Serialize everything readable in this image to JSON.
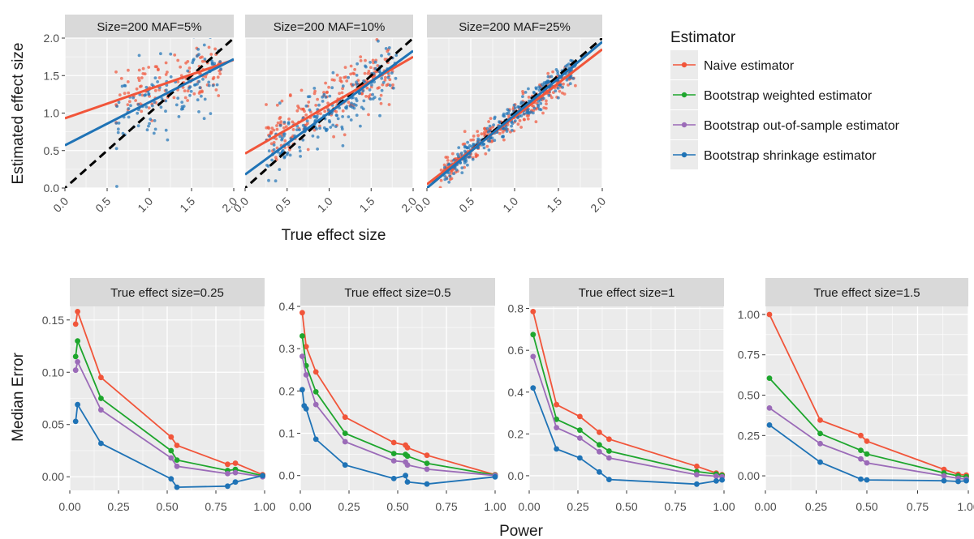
{
  "colors": {
    "naive": "#F1553A",
    "weighted": "#1EA62D",
    "oos": "#9B6BB8",
    "shrinkage": "#1F73B6",
    "panel_bg": "#EBEBEB",
    "strip_bg": "#D9D9D9",
    "grid": "#FFFFFF",
    "identity_line": "#000000"
  },
  "legend": {
    "title": "Estimator",
    "position": "right",
    "entries": [
      {
        "key": "naive",
        "label": "Naive estimator"
      },
      {
        "key": "weighted",
        "label": "Bootstrap weighted estimator"
      },
      {
        "key": "oos",
        "label": "Bootstrap out-of-sample estimator"
      },
      {
        "key": "shrinkage",
        "label": "Bootstrap shrinkage estimator"
      }
    ]
  },
  "chart_data": [
    {
      "type": "scatter",
      "xlabel": "True effect size",
      "ylabel": "Estimated effect size",
      "xlim": [
        0,
        2
      ],
      "ylim": [
        0,
        2
      ],
      "xticks": [
        "0.0",
        "0.5",
        "1.0",
        "1.5",
        "2.0"
      ],
      "yticks": [
        "0.0",
        "0.5",
        "1.0",
        "1.5",
        "2.0"
      ],
      "grid": true,
      "reference_line": {
        "slope": 1,
        "intercept": 0,
        "style": "dashed"
      },
      "facets": [
        {
          "title": "Size=200 MAF=5%",
          "fit_lines": [
            {
              "series": "naive",
              "x": [
                0,
                2
              ],
              "y": [
                0.93,
                1.71
              ]
            },
            {
              "series": "shrinkage",
              "x": [
                0,
                2
              ],
              "y": [
                0.57,
                1.72
              ]
            }
          ],
          "point_clouds": [
            {
              "series": "naive",
              "n": 120,
              "x_range": [
                0.6,
                1.85
              ],
              "intercept": 0.93,
              "slope": 0.39,
              "sd": 0.18
            },
            {
              "series": "shrinkage",
              "n": 120,
              "x_range": [
                0.6,
                1.85
              ],
              "intercept": 0.57,
              "slope": 0.58,
              "sd": 0.26
            }
          ]
        },
        {
          "title": "Size=200 MAF=10%",
          "fit_lines": [
            {
              "series": "naive",
              "x": [
                0,
                2
              ],
              "y": [
                0.46,
                1.75
              ]
            },
            {
              "series": "shrinkage",
              "x": [
                0,
                2
              ],
              "y": [
                0.18,
                1.83
              ]
            }
          ],
          "point_clouds": [
            {
              "series": "naive",
              "n": 200,
              "x_range": [
                0.25,
                1.8
              ],
              "intercept": 0.46,
              "slope": 0.65,
              "sd": 0.18
            },
            {
              "series": "shrinkage",
              "n": 200,
              "x_range": [
                0.25,
                1.8
              ],
              "intercept": 0.18,
              "slope": 0.82,
              "sd": 0.2
            }
          ]
        },
        {
          "title": "Size=200 MAF=25%",
          "fit_lines": [
            {
              "series": "naive",
              "x": [
                0,
                2
              ],
              "y": [
                0.05,
                1.85
              ]
            },
            {
              "series": "shrinkage",
              "x": [
                0,
                2
              ],
              "y": [
                0.0,
                1.95
              ]
            }
          ],
          "point_clouds": [
            {
              "series": "naive",
              "n": 260,
              "x_range": [
                0.15,
                1.7
              ],
              "intercept": 0.05,
              "slope": 0.9,
              "sd": 0.1
            },
            {
              "series": "shrinkage",
              "n": 260,
              "x_range": [
                0.2,
                1.7
              ],
              "intercept": 0.0,
              "slope": 0.96,
              "sd": 0.09
            }
          ]
        }
      ]
    },
    {
      "type": "line",
      "xlabel": "Power",
      "ylabel": "Median Error",
      "xlim": [
        0,
        1
      ],
      "xticks": [
        "0.00",
        "0.25",
        "0.50",
        "0.75",
        "1.00"
      ],
      "grid": true,
      "facets": [
        {
          "title": "True effect size=0.25",
          "ylim": [
            -0.013,
            0.163
          ],
          "yticks": [
            0.0,
            0.05,
            0.1,
            0.15
          ],
          "ytick_labels": [
            "0.00",
            "0.05",
            "0.10",
            "0.15"
          ],
          "series": [
            {
              "name": "naive",
              "x": [
                0.03,
                0.04,
                0.16,
                0.52,
                0.55,
                0.81,
                0.85,
                0.99
              ],
              "y": [
                0.146,
                0.158,
                0.095,
                0.038,
                0.03,
                0.012,
                0.013,
                0.002
              ]
            },
            {
              "name": "weighted",
              "x": [
                0.03,
                0.04,
                0.16,
                0.52,
                0.55,
                0.81,
                0.85,
                0.99
              ],
              "y": [
                0.115,
                0.13,
                0.075,
                0.025,
                0.016,
                0.006,
                0.007,
                0.001
              ]
            },
            {
              "name": "oos",
              "x": [
                0.03,
                0.04,
                0.16,
                0.52,
                0.55,
                0.81,
                0.85,
                0.99
              ],
              "y": [
                0.102,
                0.11,
                0.064,
                0.018,
                0.01,
                0.003,
                0.004,
                0.0
              ]
            },
            {
              "name": "shrinkage",
              "x": [
                0.03,
                0.04,
                0.16,
                0.52,
                0.55,
                0.81,
                0.85,
                0.99
              ],
              "y": [
                0.053,
                0.069,
                0.032,
                -0.002,
                -0.01,
                -0.009,
                -0.005,
                0.001
              ]
            }
          ]
        },
        {
          "title": "True effect size=0.5",
          "ylim": [
            -0.035,
            0.4
          ],
          "yticks": [
            0.0,
            0.1,
            0.2,
            0.3,
            0.4
          ],
          "ytick_labels": [
            "0.0",
            "0.1",
            "0.2",
            "0.3",
            "0.4"
          ],
          "series": [
            {
              "name": "naive",
              "x": [
                0.01,
                0.03,
                0.08,
                0.23,
                0.48,
                0.54,
                0.55,
                0.65,
                1.0
              ],
              "y": [
                0.385,
                0.305,
                0.245,
                0.138,
                0.078,
                0.072,
                0.066,
                0.048,
                0.002
              ]
            },
            {
              "name": "weighted",
              "x": [
                0.01,
                0.03,
                0.08,
                0.23,
                0.48,
                0.54,
                0.55,
                0.65,
                1.0
              ],
              "y": [
                0.33,
                0.26,
                0.198,
                0.1,
                0.052,
                0.05,
                0.046,
                0.029,
                0.001
              ]
            },
            {
              "name": "oos",
              "x": [
                0.01,
                0.03,
                0.08,
                0.23,
                0.48,
                0.54,
                0.55,
                0.65,
                1.0
              ],
              "y": [
                0.282,
                0.238,
                0.168,
                0.08,
                0.035,
                0.032,
                0.025,
                0.015,
                0.0
              ]
            },
            {
              "name": "shrinkage",
              "x": [
                0.01,
                0.02,
                0.03,
                0.08,
                0.23,
                0.48,
                0.54,
                0.55,
                0.65,
                1.0
              ],
              "y": [
                0.203,
                0.165,
                0.158,
                0.086,
                0.025,
                -0.007,
                0.0,
                -0.015,
                -0.02,
                -0.003
              ]
            }
          ]
        },
        {
          "title": "True effect size=1",
          "ylim": [
            -0.07,
            0.81
          ],
          "yticks": [
            0.0,
            0.2,
            0.4,
            0.6,
            0.8
          ],
          "ytick_labels": [
            "0.0",
            "0.2",
            "0.4",
            "0.6",
            "0.8"
          ],
          "series": [
            {
              "name": "naive",
              "x": [
                0.02,
                0.14,
                0.26,
                0.36,
                0.41,
                0.86,
                0.96,
                0.99
              ],
              "y": [
                0.785,
                0.34,
                0.283,
                0.208,
                0.175,
                0.045,
                0.013,
                0.005
              ]
            },
            {
              "name": "weighted",
              "x": [
                0.02,
                0.14,
                0.26,
                0.36,
                0.41,
                0.86,
                0.96,
                0.99
              ],
              "y": [
                0.675,
                0.27,
                0.218,
                0.148,
                0.118,
                0.02,
                0.008,
                0.002
              ]
            },
            {
              "name": "oos",
              "x": [
                0.02,
                0.14,
                0.26,
                0.36,
                0.41,
                0.86,
                0.96,
                0.99
              ],
              "y": [
                0.57,
                0.23,
                0.18,
                0.115,
                0.085,
                0.005,
                -0.002,
                -0.005
              ]
            },
            {
              "name": "shrinkage",
              "x": [
                0.02,
                0.14,
                0.26,
                0.36,
                0.41,
                0.86,
                0.96,
                0.99
              ],
              "y": [
                0.42,
                0.128,
                0.085,
                0.018,
                -0.018,
                -0.04,
                -0.025,
                -0.02
              ]
            }
          ]
        },
        {
          "title": "True effect size=1.5",
          "ylim": [
            -0.09,
            1.05
          ],
          "yticks": [
            0.0,
            0.25,
            0.5,
            0.75,
            1.0
          ],
          "ytick_labels": [
            "0.00",
            "0.25",
            "0.50",
            "0.75",
            "1.00"
          ],
          "series": [
            {
              "name": "naive",
              "x": [
                0.02,
                0.27,
                0.47,
                0.5,
                0.88,
                0.95,
                0.99
              ],
              "y": [
                1.0,
                0.345,
                0.25,
                0.215,
                0.04,
                0.01,
                0.005
              ]
            },
            {
              "name": "weighted",
              "x": [
                0.02,
                0.27,
                0.47,
                0.5,
                0.88,
                0.95,
                0.99
              ],
              "y": [
                0.605,
                0.262,
                0.158,
                0.135,
                0.018,
                0.0,
                -0.005
              ]
            },
            {
              "name": "oos",
              "x": [
                0.02,
                0.27,
                0.47,
                0.5,
                0.88,
                0.95,
                0.99
              ],
              "y": [
                0.42,
                0.2,
                0.105,
                0.08,
                0.0,
                -0.015,
                -0.02
              ]
            },
            {
              "name": "shrinkage",
              "x": [
                0.02,
                0.27,
                0.47,
                0.5,
                0.88,
                0.95,
                0.99
              ],
              "y": [
                0.315,
                0.085,
                -0.02,
                -0.025,
                -0.03,
                -0.035,
                -0.03
              ]
            }
          ]
        }
      ]
    }
  ]
}
